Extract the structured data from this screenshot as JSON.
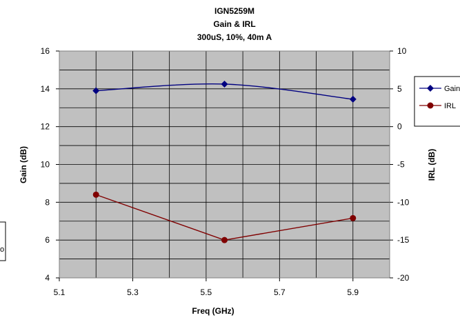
{
  "chart_data": {
    "type": "line",
    "title_lines": [
      "IGN5259M",
      "Gain & IRL",
      "300uS, 10%, 40m A"
    ],
    "xlabel": "Freq (GHz)",
    "ylabel": "Gain (dB)",
    "y2label": "IRL (dB)",
    "xlim": [
      5.1,
      6.0
    ],
    "ylim": [
      4,
      16
    ],
    "y2lim": [
      -20,
      10
    ],
    "x_ticks": [
      "5.1",
      "5.3",
      "5.5",
      "5.7",
      "5.9"
    ],
    "y_ticks": [
      "4",
      "6",
      "8",
      "10",
      "12",
      "14",
      "16"
    ],
    "y2_ticks": [
      "-20",
      "-15",
      "-10",
      "-5",
      "0",
      "5",
      "10"
    ],
    "grid": true,
    "plot_background": "#c0c0c0",
    "legend_position": "right",
    "series": [
      {
        "name": "Gain",
        "axis": "left",
        "color": "#000080",
        "marker": "diamond",
        "smooth": true,
        "x": [
          5.2,
          5.55,
          5.9
        ],
        "y": [
          13.9,
          14.25,
          13.45
        ]
      },
      {
        "name": "IRL",
        "axis": "right",
        "color": "#800000",
        "marker": "circle",
        "smooth": false,
        "x": [
          5.2,
          5.55,
          5.9
        ],
        "y": [
          -9.0,
          -15.0,
          -12.1
        ]
      }
    ],
    "left_fragment_label": "o"
  }
}
